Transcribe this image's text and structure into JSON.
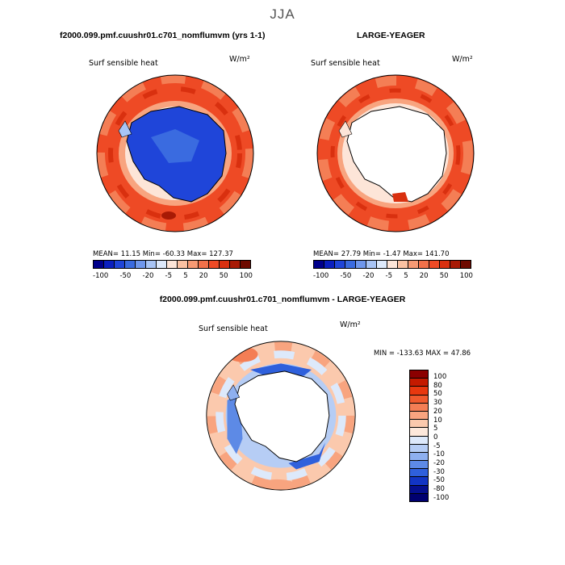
{
  "page": {
    "title": "JJA"
  },
  "panels": {
    "top_left": {
      "title": "f2000.099.pmf.cuushr01.c701_nomflumvm (yrs 1-1)",
      "variable": "Surf sensible heat",
      "units": "W/m²",
      "stats": "MEAN=  11.15   Min= -60.33   Max= 127.37"
    },
    "top_right": {
      "title": "LARGE-YEAGER",
      "variable": "Surf sensible heat",
      "units": "W/m²",
      "stats": "MEAN=  27.79   Min=  -1.47   Max= 141.70"
    },
    "bottom": {
      "title": "f2000.099.pmf.cuushr01.c701_nomflumvm - LARGE-YEAGER",
      "variable": "Surf sensible heat",
      "units": "W/m²",
      "stats": "MIN = -133.63  MAX =  47.86"
    }
  },
  "colorbar_top": {
    "ticks": [
      "-100",
      "-50",
      "-20",
      "-5",
      "5",
      "20",
      "50",
      "100"
    ],
    "colors": [
      "#00008b",
      "#0a1fbf",
      "#1f45d9",
      "#3a6be0",
      "#6f97ec",
      "#a8c4f5",
      "#dde9fb",
      "#fde5d8",
      "#fbc1a2",
      "#f79a74",
      "#f2714a",
      "#ee4a25",
      "#d9300f",
      "#a81a05",
      "#6e0a00"
    ]
  },
  "colorbar_diff": {
    "labels": [
      "100",
      "80",
      "50",
      "30",
      "20",
      "10",
      "5",
      "0",
      "-5",
      "-10",
      "-20",
      "-30",
      "-50",
      "-80",
      "-100"
    ],
    "colors": [
      "#8b0000",
      "#c41a00",
      "#e8380f",
      "#f05a2e",
      "#f47e55",
      "#f8a47f",
      "#fbc9ad",
      "#fde8db",
      "#dde9fb",
      "#b6cdf5",
      "#8eb0f0",
      "#5d8ae6",
      "#2f60dc",
      "#1235c4",
      "#050f8e",
      "#000070"
    ]
  }
}
